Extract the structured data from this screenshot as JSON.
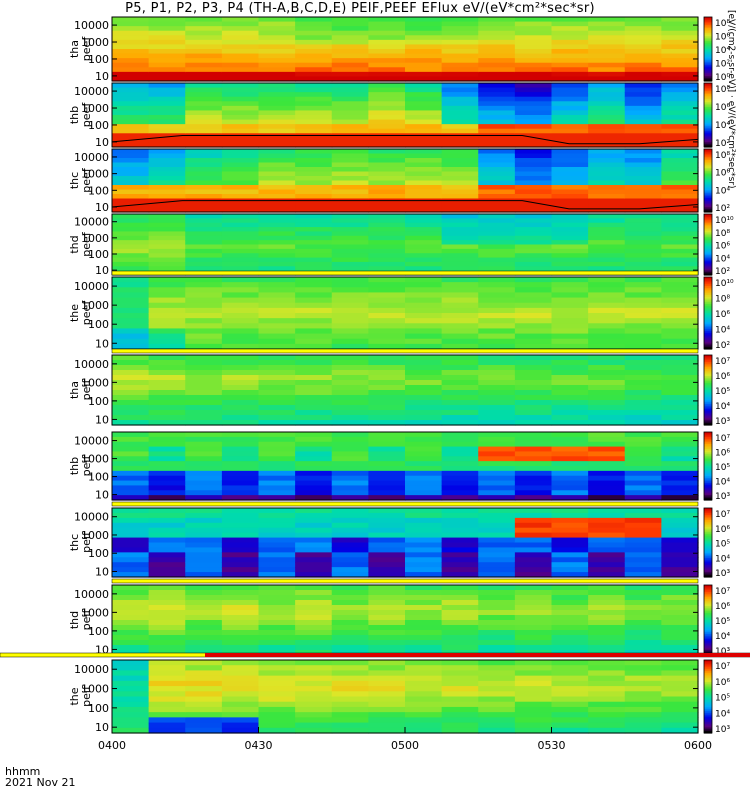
{
  "title": "P5, P1, P2, P3, P4 (TH-A,B,C,D,E) PEIF,PEEF EFlux eV/(eV*cm²*sec*sr)",
  "footer": {
    "line1": "hhmm",
    "line2": "2021 Nov 21"
  },
  "colorbar_label": "[eV/(cm2-s-sr-eV)] · eV/(eV*cm²*sec*sr)",
  "chart_data": [
    {
      "type": "heatmap",
      "panels": [
        {
          "ylabel": [
            "tha",
            "peef"
          ],
          "ticks": [
            "10000",
            "1000",
            "100",
            "10"
          ],
          "cbar_ticks": [
            "10⁸",
            "10⁶",
            "10⁴",
            "10²",
            "10⁰"
          ],
          "style": "A",
          "top_band": false,
          "sc_line": false
        },
        {
          "ylabel": [
            "thb",
            "peef"
          ],
          "ticks": [
            "10000",
            "1000",
            "100",
            "10"
          ],
          "cbar_ticks": [
            "10⁸",
            "10⁶",
            "10⁴",
            "10²"
          ],
          "style": "B",
          "top_band": false,
          "sc_line": true
        },
        {
          "ylabel": [
            "thc",
            "peef"
          ],
          "ticks": [
            "10000",
            "1000",
            "100",
            "10"
          ],
          "cbar_ticks": [
            "10⁸",
            "10⁶",
            "10⁴",
            "10²"
          ],
          "style": "C",
          "top_band": false,
          "sc_line": true
        },
        {
          "ylabel": [
            "thd",
            "peef"
          ],
          "ticks": [
            "10000",
            "1000",
            "100",
            "10"
          ],
          "cbar_ticks": [
            "10¹⁰",
            "10⁸",
            "10⁶",
            "10⁴",
            "10²"
          ],
          "style": "D",
          "top_band": false,
          "sc_line": false
        },
        {
          "ylabel": [
            "the",
            "peef"
          ],
          "ticks": [
            "10000",
            "1000",
            "100",
            "10"
          ],
          "cbar_ticks": [
            "10¹⁰",
            "10⁸",
            "10⁶",
            "10⁴",
            "10²"
          ],
          "style": "E",
          "top_band": true,
          "sc_line": false
        },
        {
          "ylabel": [
            "tha",
            "peif"
          ],
          "ticks": [
            "10000",
            "1000",
            "100",
            "10"
          ],
          "cbar_ticks": [
            "10⁷",
            "10⁶",
            "10⁵",
            "10⁴",
            "10³"
          ],
          "style": "F",
          "top_band": true,
          "sc_line": false
        },
        {
          "ylabel": [
            "thb",
            "peif"
          ],
          "ticks": [
            "10000",
            "1000",
            "100",
            "10"
          ],
          "cbar_ticks": [
            "10⁷",
            "10⁶",
            "10⁵",
            "10⁴",
            "10³"
          ],
          "style": "G",
          "top_band": false,
          "sc_line": false
        },
        {
          "ylabel": [
            "thc",
            "peif"
          ],
          "ticks": [
            "10000",
            "1000",
            "100",
            "10"
          ],
          "cbar_ticks": [
            "10⁷",
            "10⁶",
            "10⁵",
            "10⁴",
            "10³"
          ],
          "style": "H",
          "top_band": true,
          "sc_line": false
        },
        {
          "ylabel": [
            "thd",
            "peif"
          ],
          "ticks": [
            "10000",
            "1000",
            "100",
            "10"
          ],
          "cbar_ticks": [
            "10⁷",
            "10⁶",
            "10⁵",
            "10⁴",
            "10³"
          ],
          "style": "I",
          "top_band": true,
          "sc_line": false
        },
        {
          "ylabel": [
            "the",
            "peif"
          ],
          "ticks": [
            "10000",
            "1000",
            "100",
            "10"
          ],
          "cbar_ticks": [
            "10⁷",
            "10⁶",
            "10⁵",
            "10⁴",
            "10³"
          ],
          "style": "J",
          "top_band": false,
          "sc_line": false
        }
      ],
      "x_ticks": [
        "0400",
        "0430",
        "0500",
        "0530",
        "0600"
      ],
      "x_range_minutes": [
        0,
        120
      ],
      "xlabel": "hhmm",
      "date": "2021 Nov 21",
      "ylim": [
        5,
        30000
      ],
      "yscale": "log",
      "colormap": "rainbow"
    }
  ]
}
